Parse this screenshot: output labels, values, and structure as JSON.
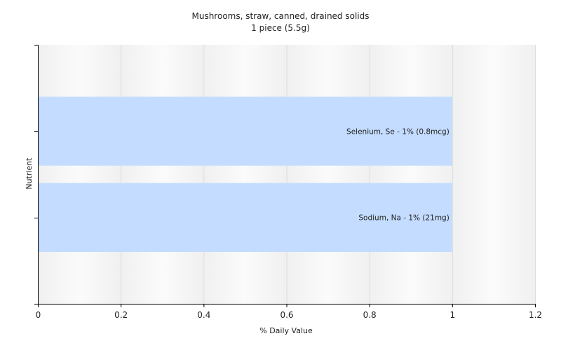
{
  "chart_data": {
    "type": "bar",
    "orientation": "horizontal",
    "title": "Mushrooms, straw, canned, drained solids",
    "subtitle": "1 piece (5.5g)",
    "xlabel": "% Daily Value",
    "ylabel": "Nutrient",
    "xlim": [
      0,
      1.2
    ],
    "xticks": [
      "0",
      "0.2",
      "0.4",
      "0.6",
      "0.8",
      "1",
      "1.2"
    ],
    "categories": [
      "Selenium, Se",
      "Sodium, Na"
    ],
    "values": [
      1,
      1
    ],
    "data_labels": [
      "Selenium, Se - 1% (0.8mcg)",
      "Sodium, Na - 1% (21mg)"
    ],
    "grid": true,
    "legend": "none",
    "colors": {
      "bar": "#c4dcff",
      "plot_band_light": "#ffffff",
      "plot_band_dark": "#ebebeb",
      "grid": "#dddddd",
      "axis": "#000000"
    }
  }
}
